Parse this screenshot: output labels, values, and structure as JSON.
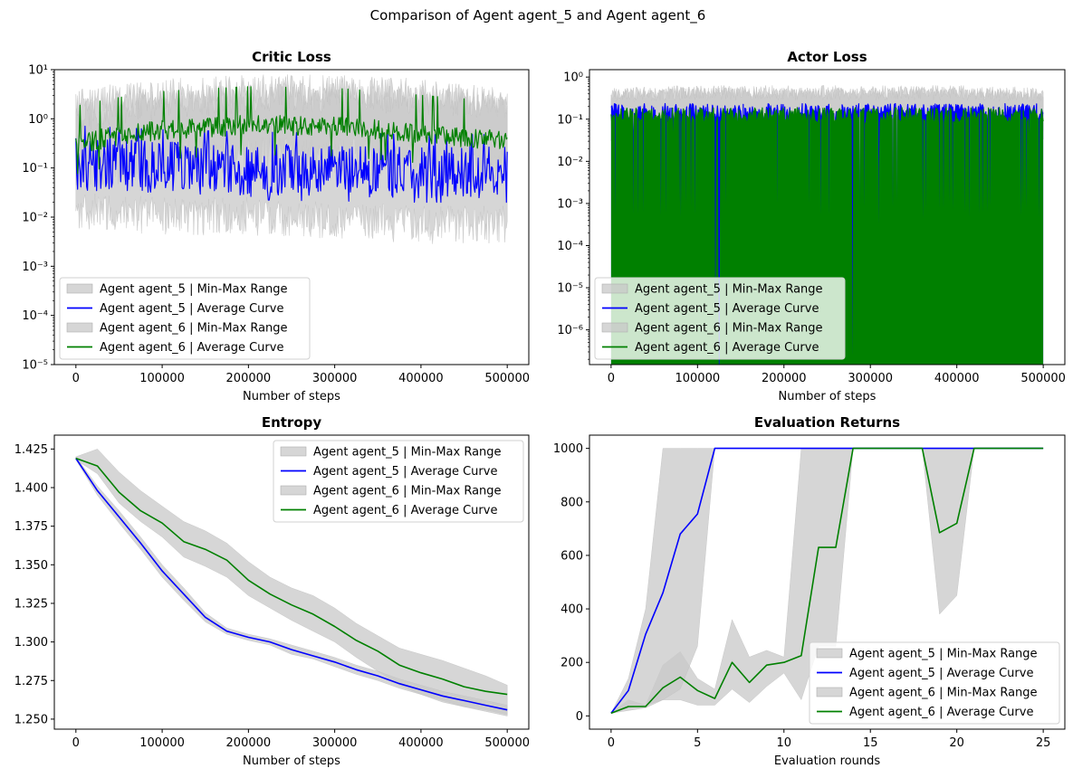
{
  "figure": {
    "suptitle": "Comparison of Agent agent_5 and Agent agent_6",
    "colors": {
      "agent_5": "#0000ff",
      "agent_6": "#008000",
      "range": "#c8c8c8"
    }
  },
  "legend_labels": [
    "Agent agent_5 | Min-Max Range",
    "Agent agent_5 | Average Curve",
    "Agent agent_6 | Min-Max Range",
    "Agent agent_6 | Average Curve"
  ],
  "chart_data": [
    {
      "id": "critic",
      "type": "line",
      "title": "Critic Loss",
      "xlabel": "Number of steps",
      "ylabel": "",
      "yscale": "log",
      "xlim": [
        -25000,
        525000
      ],
      "ylim": [
        1e-05,
        10
      ],
      "xticks": [
        0,
        100000,
        200000,
        300000,
        400000,
        500000
      ],
      "xticklabels": [
        "0",
        "100000",
        "200000",
        "300000",
        "400000",
        "500000"
      ],
      "yticks": [
        1e-05,
        0.0001,
        0.001,
        0.01,
        0.1,
        1,
        10
      ],
      "yticklabels": [
        "10⁻⁵",
        "10⁻⁴",
        "10⁻³",
        "10⁻²",
        "10⁻¹",
        "10⁰",
        "10¹"
      ],
      "legend_loc": "lower-left",
      "series": [
        {
          "name": "Agent agent_5",
          "kind": "noisy",
          "x": [
            0,
            100000,
            200000,
            300000,
            400000,
            500000
          ],
          "mean": [
            0.12,
            0.1,
            0.09,
            0.085,
            0.08,
            0.08
          ],
          "noise_low": 2.5,
          "noise_high": 3.5,
          "range_low": [
            0.02,
            0.015,
            0.015,
            0.012,
            0.01,
            0.01
          ],
          "range_high": [
            0.8,
            1.5,
            2.0,
            2.0,
            1.8,
            1.5
          ]
        },
        {
          "name": "Agent agent_6",
          "kind": "noisy",
          "x": [
            0,
            100000,
            200000,
            300000,
            400000,
            500000
          ],
          "mean": [
            0.3,
            0.6,
            0.75,
            0.7,
            0.5,
            0.35
          ],
          "noise_low": 1.6,
          "noise_high": 1.6,
          "range_low": [
            0.1,
            0.2,
            0.25,
            0.25,
            0.2,
            0.15
          ],
          "range_high": [
            1.5,
            2.5,
            3.0,
            3.0,
            2.5,
            1.5
          ]
        }
      ]
    },
    {
      "id": "actor",
      "type": "line",
      "title": "Actor Loss",
      "xlabel": "Number of steps",
      "ylabel": "",
      "yscale": "log",
      "xlim": [
        -25000,
        525000
      ],
      "ylim": [
        1.5e-07,
        1.5
      ],
      "xticks": [
        0,
        100000,
        200000,
        300000,
        400000,
        500000
      ],
      "xticklabels": [
        "0",
        "100000",
        "200000",
        "300000",
        "400000",
        "500000"
      ],
      "yticks": [
        1e-06,
        1e-05,
        0.0001,
        0.001,
        0.01,
        0.1,
        1
      ],
      "yticklabels": [
        "10⁻⁶",
        "10⁻⁵",
        "10⁻⁴",
        "10⁻³",
        "10⁻²",
        "10⁻¹",
        "10⁰"
      ],
      "legend_loc": "lower-left",
      "series": [
        {
          "name": "Agent agent_5",
          "kind": "spiky",
          "x": [
            0,
            100000,
            200000,
            300000,
            400000,
            500000
          ],
          "mean": [
            0.15,
            0.15,
            0.15,
            0.15,
            0.15,
            0.15
          ],
          "range_low": [
            0.05,
            0.05,
            0.05,
            0.05,
            0.05,
            0.05
          ],
          "range_high": [
            0.35,
            0.4,
            0.4,
            0.4,
            0.4,
            0.35
          ]
        },
        {
          "name": "Agent agent_6",
          "kind": "spiky",
          "x": [
            0,
            100000,
            200000,
            300000,
            400000,
            500000
          ],
          "mean": [
            0.12,
            0.12,
            0.12,
            0.12,
            0.12,
            0.12
          ],
          "range_low": [
            0.04,
            0.04,
            0.04,
            0.04,
            0.04,
            0.04
          ],
          "range_high": [
            0.4,
            0.45,
            0.45,
            0.45,
            0.45,
            0.4
          ]
        }
      ]
    },
    {
      "id": "entropy",
      "type": "line",
      "title": "Entropy",
      "xlabel": "Number of steps",
      "ylabel": "",
      "yscale": "linear",
      "xlim": [
        -25000,
        525000
      ],
      "ylim": [
        1.2435,
        1.434
      ],
      "xticks": [
        0,
        100000,
        200000,
        300000,
        400000,
        500000
      ],
      "xticklabels": [
        "0",
        "100000",
        "200000",
        "300000",
        "400000",
        "500000"
      ],
      "yticks": [
        1.25,
        1.275,
        1.3,
        1.325,
        1.35,
        1.375,
        1.4,
        1.425
      ],
      "yticklabels": [
        "1.250",
        "1.275",
        "1.300",
        "1.325",
        "1.350",
        "1.375",
        "1.400",
        "1.425"
      ],
      "legend_loc": "top-right",
      "series": [
        {
          "name": "Agent agent_5",
          "kind": "smooth",
          "x": [
            0,
            25000,
            50000,
            75000,
            100000,
            125000,
            150000,
            175000,
            200000,
            225000,
            250000,
            275000,
            300000,
            325000,
            350000,
            375000,
            400000,
            425000,
            450000,
            475000,
            500000
          ],
          "mean": [
            1.419,
            1.398,
            1.381,
            1.364,
            1.346,
            1.331,
            1.316,
            1.307,
            1.303,
            1.3,
            1.295,
            1.291,
            1.287,
            1.282,
            1.278,
            1.273,
            1.269,
            1.265,
            1.262,
            1.259,
            1.256
          ],
          "range_low": [
            1.418,
            1.395,
            1.377,
            1.36,
            1.342,
            1.327,
            1.313,
            1.305,
            1.301,
            1.298,
            1.292,
            1.289,
            1.284,
            1.279,
            1.275,
            1.27,
            1.266,
            1.261,
            1.258,
            1.255,
            1.252
          ],
          "range_high": [
            1.42,
            1.401,
            1.385,
            1.368,
            1.35,
            1.335,
            1.319,
            1.309,
            1.305,
            1.302,
            1.298,
            1.294,
            1.29,
            1.285,
            1.281,
            1.276,
            1.272,
            1.268,
            1.265,
            1.262,
            1.259
          ]
        },
        {
          "name": "Agent agent_6",
          "kind": "smooth",
          "x": [
            0,
            25000,
            50000,
            75000,
            100000,
            125000,
            150000,
            175000,
            200000,
            225000,
            250000,
            275000,
            300000,
            325000,
            350000,
            375000,
            400000,
            425000,
            450000,
            475000,
            500000
          ],
          "mean": [
            1.419,
            1.414,
            1.397,
            1.385,
            1.377,
            1.365,
            1.36,
            1.353,
            1.34,
            1.331,
            1.324,
            1.318,
            1.31,
            1.301,
            1.294,
            1.285,
            1.28,
            1.276,
            1.271,
            1.268,
            1.266
          ],
          "range_low": [
            1.418,
            1.409,
            1.39,
            1.378,
            1.368,
            1.355,
            1.349,
            1.342,
            1.33,
            1.322,
            1.314,
            1.307,
            1.3,
            1.29,
            1.281,
            1.272,
            1.266,
            1.262,
            1.258,
            1.256,
            1.253
          ],
          "range_high": [
            1.42,
            1.425,
            1.41,
            1.398,
            1.388,
            1.378,
            1.372,
            1.364,
            1.352,
            1.342,
            1.335,
            1.33,
            1.322,
            1.312,
            1.304,
            1.296,
            1.292,
            1.288,
            1.283,
            1.278,
            1.272
          ]
        }
      ]
    },
    {
      "id": "eval",
      "type": "line",
      "title": "Evaluation Returns",
      "xlabel": "Evaluation rounds",
      "ylabel": "",
      "yscale": "linear",
      "xlim": [
        -1.25,
        26.25
      ],
      "ylim": [
        -49.5,
        1049.5
      ],
      "xticks": [
        0,
        5,
        10,
        15,
        20,
        25
      ],
      "xticklabels": [
        "0",
        "5",
        "10",
        "15",
        "20",
        "25"
      ],
      "yticks": [
        0,
        200,
        400,
        600,
        800,
        1000
      ],
      "yticklabels": [
        "0",
        "200",
        "400",
        "600",
        "800",
        "1000"
      ],
      "legend_loc": "lower-right",
      "series": [
        {
          "name": "Agent agent_5",
          "kind": "smooth",
          "x": [
            0,
            1,
            2,
            3,
            4,
            5,
            6,
            7,
            8,
            9,
            10,
            11,
            12,
            13,
            14,
            15,
            16,
            17,
            18,
            19,
            20,
            21,
            22,
            23,
            24,
            25
          ],
          "mean": [
            10,
            95,
            305,
            460,
            680,
            755,
            1000,
            1000,
            1000,
            1000,
            1000,
            1000,
            1000,
            1000,
            1000,
            1000,
            1000,
            1000,
            1000,
            1000,
            1000,
            1000,
            1000,
            1000,
            1000,
            1000
          ],
          "range_low": [
            10,
            30,
            40,
            60,
            100,
            260,
            1000,
            1000,
            1000,
            1000,
            1000,
            1000,
            1000,
            1000,
            1000,
            1000,
            1000,
            1000,
            1000,
            1000,
            1000,
            1000,
            1000,
            1000,
            1000,
            1000
          ],
          "range_high": [
            10,
            140,
            400,
            1000,
            1000,
            1000,
            1000,
            1000,
            1000,
            1000,
            1000,
            1000,
            1000,
            1000,
            1000,
            1000,
            1000,
            1000,
            1000,
            1000,
            1000,
            1000,
            1000,
            1000,
            1000,
            1000
          ]
        },
        {
          "name": "Agent agent_6",
          "kind": "smooth",
          "x": [
            0,
            1,
            2,
            3,
            4,
            5,
            6,
            7,
            8,
            9,
            10,
            11,
            12,
            13,
            14,
            15,
            16,
            17,
            18,
            19,
            20,
            21,
            22,
            23,
            24,
            25
          ],
          "mean": [
            10,
            35,
            35,
            105,
            145,
            95,
            65,
            200,
            125,
            190,
            200,
            225,
            630,
            630,
            1000,
            1000,
            1000,
            1000,
            1000,
            685,
            720,
            1000,
            1000,
            1000,
            1000,
            1000
          ],
          "range_low": [
            10,
            20,
            30,
            60,
            60,
            40,
            40,
            100,
            50,
            110,
            160,
            60,
            260,
            260,
            1000,
            1000,
            1000,
            1000,
            1000,
            380,
            450,
            1000,
            1000,
            1000,
            1000,
            1000
          ],
          "range_high": [
            10,
            60,
            40,
            190,
            240,
            140,
            100,
            360,
            220,
            245,
            220,
            1000,
            1000,
            1000,
            1000,
            1000,
            1000,
            1000,
            1000,
            1000,
            1000,
            1000,
            1000,
            1000,
            1000,
            1000
          ]
        }
      ]
    }
  ]
}
